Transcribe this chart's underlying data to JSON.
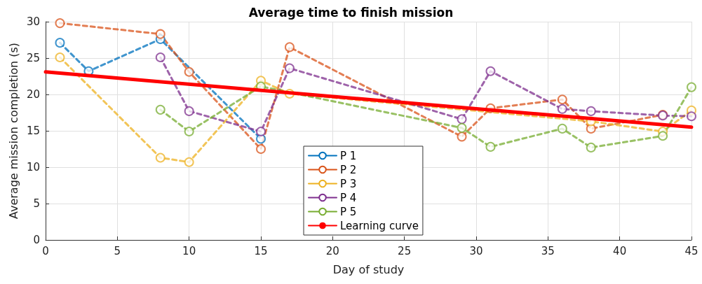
{
  "chart_data": {
    "type": "line",
    "title": "Average time to finish mission",
    "xlabel": "Day of study",
    "ylabel": "Average mission completion (s)",
    "xlim": [
      0,
      45
    ],
    "xticks": [
      0,
      5,
      10,
      15,
      20,
      25,
      30,
      35,
      40,
      45
    ],
    "ylim": [
      0,
      30
    ],
    "yticks": [
      0,
      5,
      10,
      15,
      20,
      25,
      30
    ],
    "grid": true,
    "legend": "bottom",
    "series": [
      {
        "name": "P 1",
        "color": "#0072bd",
        "x": [
          1,
          3,
          8,
          15
        ],
        "values": [
          27.1,
          23.2,
          27.6,
          13.9
        ],
        "marker": "circle",
        "line_style": "dashed"
      },
      {
        "name": "P 2",
        "color": "#d95319",
        "x": [
          1,
          8,
          10,
          15,
          17,
          29,
          31,
          36,
          38,
          43
        ],
        "values": [
          29.8,
          28.3,
          23.1,
          12.5,
          26.5,
          14.2,
          18.1,
          19.3,
          15.3,
          17.2
        ],
        "marker": "circle",
        "line_style": "dashed"
      },
      {
        "name": "P 3",
        "color": "#edb120",
        "x": [
          1,
          8,
          10,
          15,
          17,
          38,
          43,
          45
        ],
        "values": [
          25.1,
          11.3,
          10.7,
          21.9,
          20.1,
          16.3,
          14.9,
          17.8
        ],
        "marker": "circle",
        "line_style": "dashed"
      },
      {
        "name": "P 4",
        "color": "#7e2f8e",
        "x": [
          8,
          10,
          15,
          17,
          29,
          31,
          36,
          38,
          43,
          45
        ],
        "values": [
          25.1,
          17.7,
          14.9,
          23.6,
          16.6,
          23.2,
          18.0,
          17.7,
          17.1,
          17.0
        ],
        "marker": "circle",
        "line_style": "dashed"
      },
      {
        "name": "P 5",
        "color": "#77ac30",
        "x": [
          8,
          10,
          15,
          29,
          31,
          36,
          38,
          43,
          45
        ],
        "values": [
          17.9,
          14.9,
          21.1,
          15.4,
          12.8,
          15.3,
          12.7,
          14.3,
          21.0
        ],
        "marker": "circle",
        "line_style": "dashed"
      },
      {
        "name": "Learning curve",
        "color": "#ff0000",
        "x": [
          0,
          45
        ],
        "values": [
          23.1,
          15.5
        ],
        "marker": "none",
        "line_style": "solid"
      }
    ]
  }
}
